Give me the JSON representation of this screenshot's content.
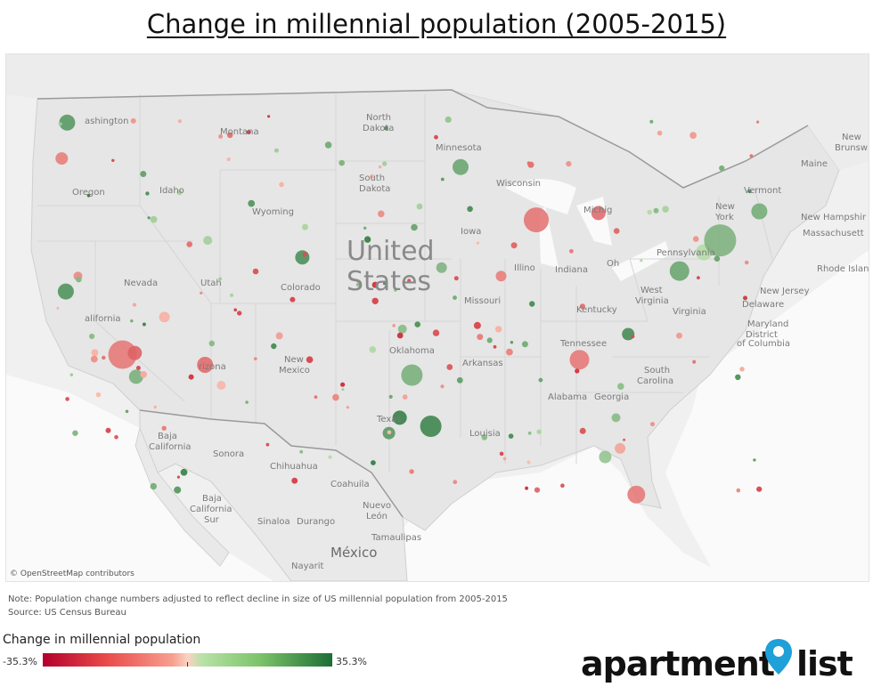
{
  "title": "Change in millennial population (2005-2015)",
  "map": {
    "attribution": "© OpenStreetMap contributors",
    "country_label": [
      "United",
      "States"
    ],
    "mexico_label": "México",
    "place_labels": [
      {
        "id": "washington",
        "text": "ashington"
      },
      {
        "id": "oregon",
        "text": "Oregon"
      },
      {
        "id": "idaho",
        "text": "Idaho"
      },
      {
        "id": "montana",
        "text": "Montana"
      },
      {
        "id": "wyoming",
        "text": "Wyoming"
      },
      {
        "id": "nevada",
        "text": "Nevada"
      },
      {
        "id": "utah",
        "text": "Utah"
      },
      {
        "id": "colorado",
        "text": "Colorado"
      },
      {
        "id": "california",
        "text": "alifornia"
      },
      {
        "id": "arizona",
        "text": "rizona"
      },
      {
        "id": "new-mexico-1",
        "text": "New"
      },
      {
        "id": "new-mexico-2",
        "text": "Mexico"
      },
      {
        "id": "north-dakota-1",
        "text": "North"
      },
      {
        "id": "north-dakota-2",
        "text": "Dakota"
      },
      {
        "id": "south-dakota-1",
        "text": "South"
      },
      {
        "id": "south-dakota-2",
        "text": "Dakota"
      },
      {
        "id": "minnesota",
        "text": "Minnesota"
      },
      {
        "id": "wisconsin",
        "text": "Wisconsin"
      },
      {
        "id": "iowa",
        "text": "Iowa"
      },
      {
        "id": "missouri",
        "text": "Missouri"
      },
      {
        "id": "oklahoma",
        "text": "Oklahoma"
      },
      {
        "id": "arkansas",
        "text": "Arkansas"
      },
      {
        "id": "texas",
        "text": "Texas"
      },
      {
        "id": "louisiana",
        "text": "Louisia"
      },
      {
        "id": "illinois",
        "text": "Illino"
      },
      {
        "id": "indiana",
        "text": "Indiana"
      },
      {
        "id": "michigan",
        "text": "Michig"
      },
      {
        "id": "ohio",
        "text": "Oh"
      },
      {
        "id": "kentucky",
        "text": "Kentucky"
      },
      {
        "id": "tennessee",
        "text": "Tennessee"
      },
      {
        "id": "alabama",
        "text": "Alabama"
      },
      {
        "id": "georgia",
        "text": "Georgia"
      },
      {
        "id": "carolina",
        "text": "Carolina"
      },
      {
        "id": "south",
        "text": "South"
      },
      {
        "id": "virginia",
        "text": "Virginia"
      },
      {
        "id": "west-virginia-1",
        "text": "West"
      },
      {
        "id": "west-virginia-2",
        "text": "Virginia"
      },
      {
        "id": "pennsylvania",
        "text": "Pennsylvania"
      },
      {
        "id": "new-york-1",
        "text": "New"
      },
      {
        "id": "new-york-2",
        "text": "York"
      },
      {
        "id": "vermont",
        "text": "Vermont"
      },
      {
        "id": "maine",
        "text": "Maine"
      },
      {
        "id": "new-brunswick-1",
        "text": "New"
      },
      {
        "id": "new-brunswick-2",
        "text": "Brunsw"
      },
      {
        "id": "new-hampshire",
        "text": "New Hampshir"
      },
      {
        "id": "massachusetts",
        "text": "Massachusett"
      },
      {
        "id": "rhode-island",
        "text": "Rhode Island"
      },
      {
        "id": "new-jersey",
        "text": "New Jersey"
      },
      {
        "id": "delaware",
        "text": "Delaware"
      },
      {
        "id": "maryland",
        "text": "Maryland"
      },
      {
        "id": "district-1",
        "text": "District"
      },
      {
        "id": "district-2",
        "text": "of Columbia"
      },
      {
        "id": "baja-california-1",
        "text": "Baja"
      },
      {
        "id": "baja-california-2",
        "text": "California"
      },
      {
        "id": "sonora",
        "text": "Sonora"
      },
      {
        "id": "chihuahua",
        "text": "Chihuahua"
      },
      {
        "id": "coahuila",
        "text": "Coahuila"
      },
      {
        "id": "baja-california-sur-1",
        "text": "Baja"
      },
      {
        "id": "baja-california-sur-2",
        "text": "California"
      },
      {
        "id": "baja-california-sur-3",
        "text": "Sur"
      },
      {
        "id": "sinaloa",
        "text": "Sinaloa"
      },
      {
        "id": "durango",
        "text": "Durango"
      },
      {
        "id": "nuevo-leon-1",
        "text": "Nuevo"
      },
      {
        "id": "nuevo-leon-2",
        "text": "León"
      },
      {
        "id": "tamaulipas",
        "text": "Tamaulipas"
      },
      {
        "id": "nayarit",
        "text": "Nayarit"
      }
    ]
  },
  "notes": {
    "line1": "Note: Population change numbers adjusted to reflect decline in size of US millennial population from 2005-2015",
    "line2": "Source: US Census Bureau"
  },
  "legend": {
    "title": "Change in millennial population",
    "min_label": "-35.3%",
    "max_label": "35.3%",
    "min_value": -35.3,
    "max_value": 35.3
  },
  "logo": {
    "text_left": "apartment",
    "text_right": "list",
    "icon": "location-pin-icon",
    "icon_color": "#1ea0d8"
  },
  "colors": {
    "negative": "#e94a4a",
    "positive": "#3f9a4a",
    "neutral": "#d8cfc4"
  },
  "chart_data": {
    "type": "scatter",
    "title": "Change in millennial population (2005-2015)",
    "xlabel": "",
    "ylabel": "",
    "note": "Bubble map of US metro areas; x = longitude, y = latitude, size ~ population, color = percent change",
    "points": [
      {
        "lon": -122.3,
        "lat": 47.6,
        "size": 9,
        "change": 22
      },
      {
        "lon": -122.7,
        "lat": 45.5,
        "size": 7,
        "change": -14
      },
      {
        "lon": -117.4,
        "lat": 47.7,
        "size": 3,
        "change": -10
      },
      {
        "lon": -121.5,
        "lat": 38.6,
        "size": 5,
        "change": -12
      },
      {
        "lon": -122.4,
        "lat": 37.7,
        "size": 9,
        "change": 24
      },
      {
        "lon": -118.2,
        "lat": 34.0,
        "size": 16,
        "change": -15
      },
      {
        "lon": -117.3,
        "lat": 34.1,
        "size": 8,
        "change": -20
      },
      {
        "lon": -117.2,
        "lat": 32.7,
        "size": 8,
        "change": 15
      },
      {
        "lon": -115.1,
        "lat": 36.2,
        "size": 6,
        "change": -3
      },
      {
        "lon": -112.1,
        "lat": 33.4,
        "size": 9,
        "change": -18
      },
      {
        "lon": -110.9,
        "lat": 32.2,
        "size": 5,
        "change": -2
      },
      {
        "lon": -111.9,
        "lat": 40.7,
        "size": 5,
        "change": 6
      },
      {
        "lon": -104.9,
        "lat": 39.7,
        "size": 8,
        "change": 25
      },
      {
        "lon": -106.6,
        "lat": 35.1,
        "size": 4,
        "change": -8
      },
      {
        "lon": -96.8,
        "lat": 32.8,
        "size": 12,
        "change": 15
      },
      {
        "lon": -95.4,
        "lat": 29.8,
        "size": 12,
        "change": 28
      },
      {
        "lon": -97.7,
        "lat": 30.3,
        "size": 8,
        "change": 30
      },
      {
        "lon": -98.5,
        "lat": 29.4,
        "size": 7,
        "change": 22
      },
      {
        "lon": -97.5,
        "lat": 35.5,
        "size": 5,
        "change": 12
      },
      {
        "lon": -93.2,
        "lat": 45.0,
        "size": 9,
        "change": 18
      },
      {
        "lon": -87.6,
        "lat": 41.9,
        "size": 14,
        "change": -16
      },
      {
        "lon": -90.2,
        "lat": 38.6,
        "size": 6,
        "change": -14
      },
      {
        "lon": -94.6,
        "lat": 39.1,
        "size": 6,
        "change": 14
      },
      {
        "lon": -83.0,
        "lat": 42.3,
        "size": 8,
        "change": -18
      },
      {
        "lon": -84.4,
        "lat": 33.7,
        "size": 11,
        "change": -15
      },
      {
        "lon": -80.8,
        "lat": 35.2,
        "size": 7,
        "change": 26
      },
      {
        "lon": -77.0,
        "lat": 38.9,
        "size": 11,
        "change": 18
      },
      {
        "lon": -75.2,
        "lat": 40.0,
        "size": 9,
        "change": 2
      },
      {
        "lon": -74.0,
        "lat": 40.7,
        "size": 18,
        "change": 14
      },
      {
        "lon": -71.1,
        "lat": 42.4,
        "size": 9,
        "change": 16
      },
      {
        "lon": -80.2,
        "lat": 25.8,
        "size": 10,
        "change": -15
      },
      {
        "lon": -82.5,
        "lat": 28.0,
        "size": 7,
        "change": 9
      },
      {
        "lon": -81.4,
        "lat": 28.5,
        "size": 6,
        "change": -6
      },
      {
        "lon": -81.7,
        "lat": 30.3,
        "size": 5,
        "change": 12
      }
    ],
    "legend_range": [
      -35.3,
      35.3
    ]
  }
}
